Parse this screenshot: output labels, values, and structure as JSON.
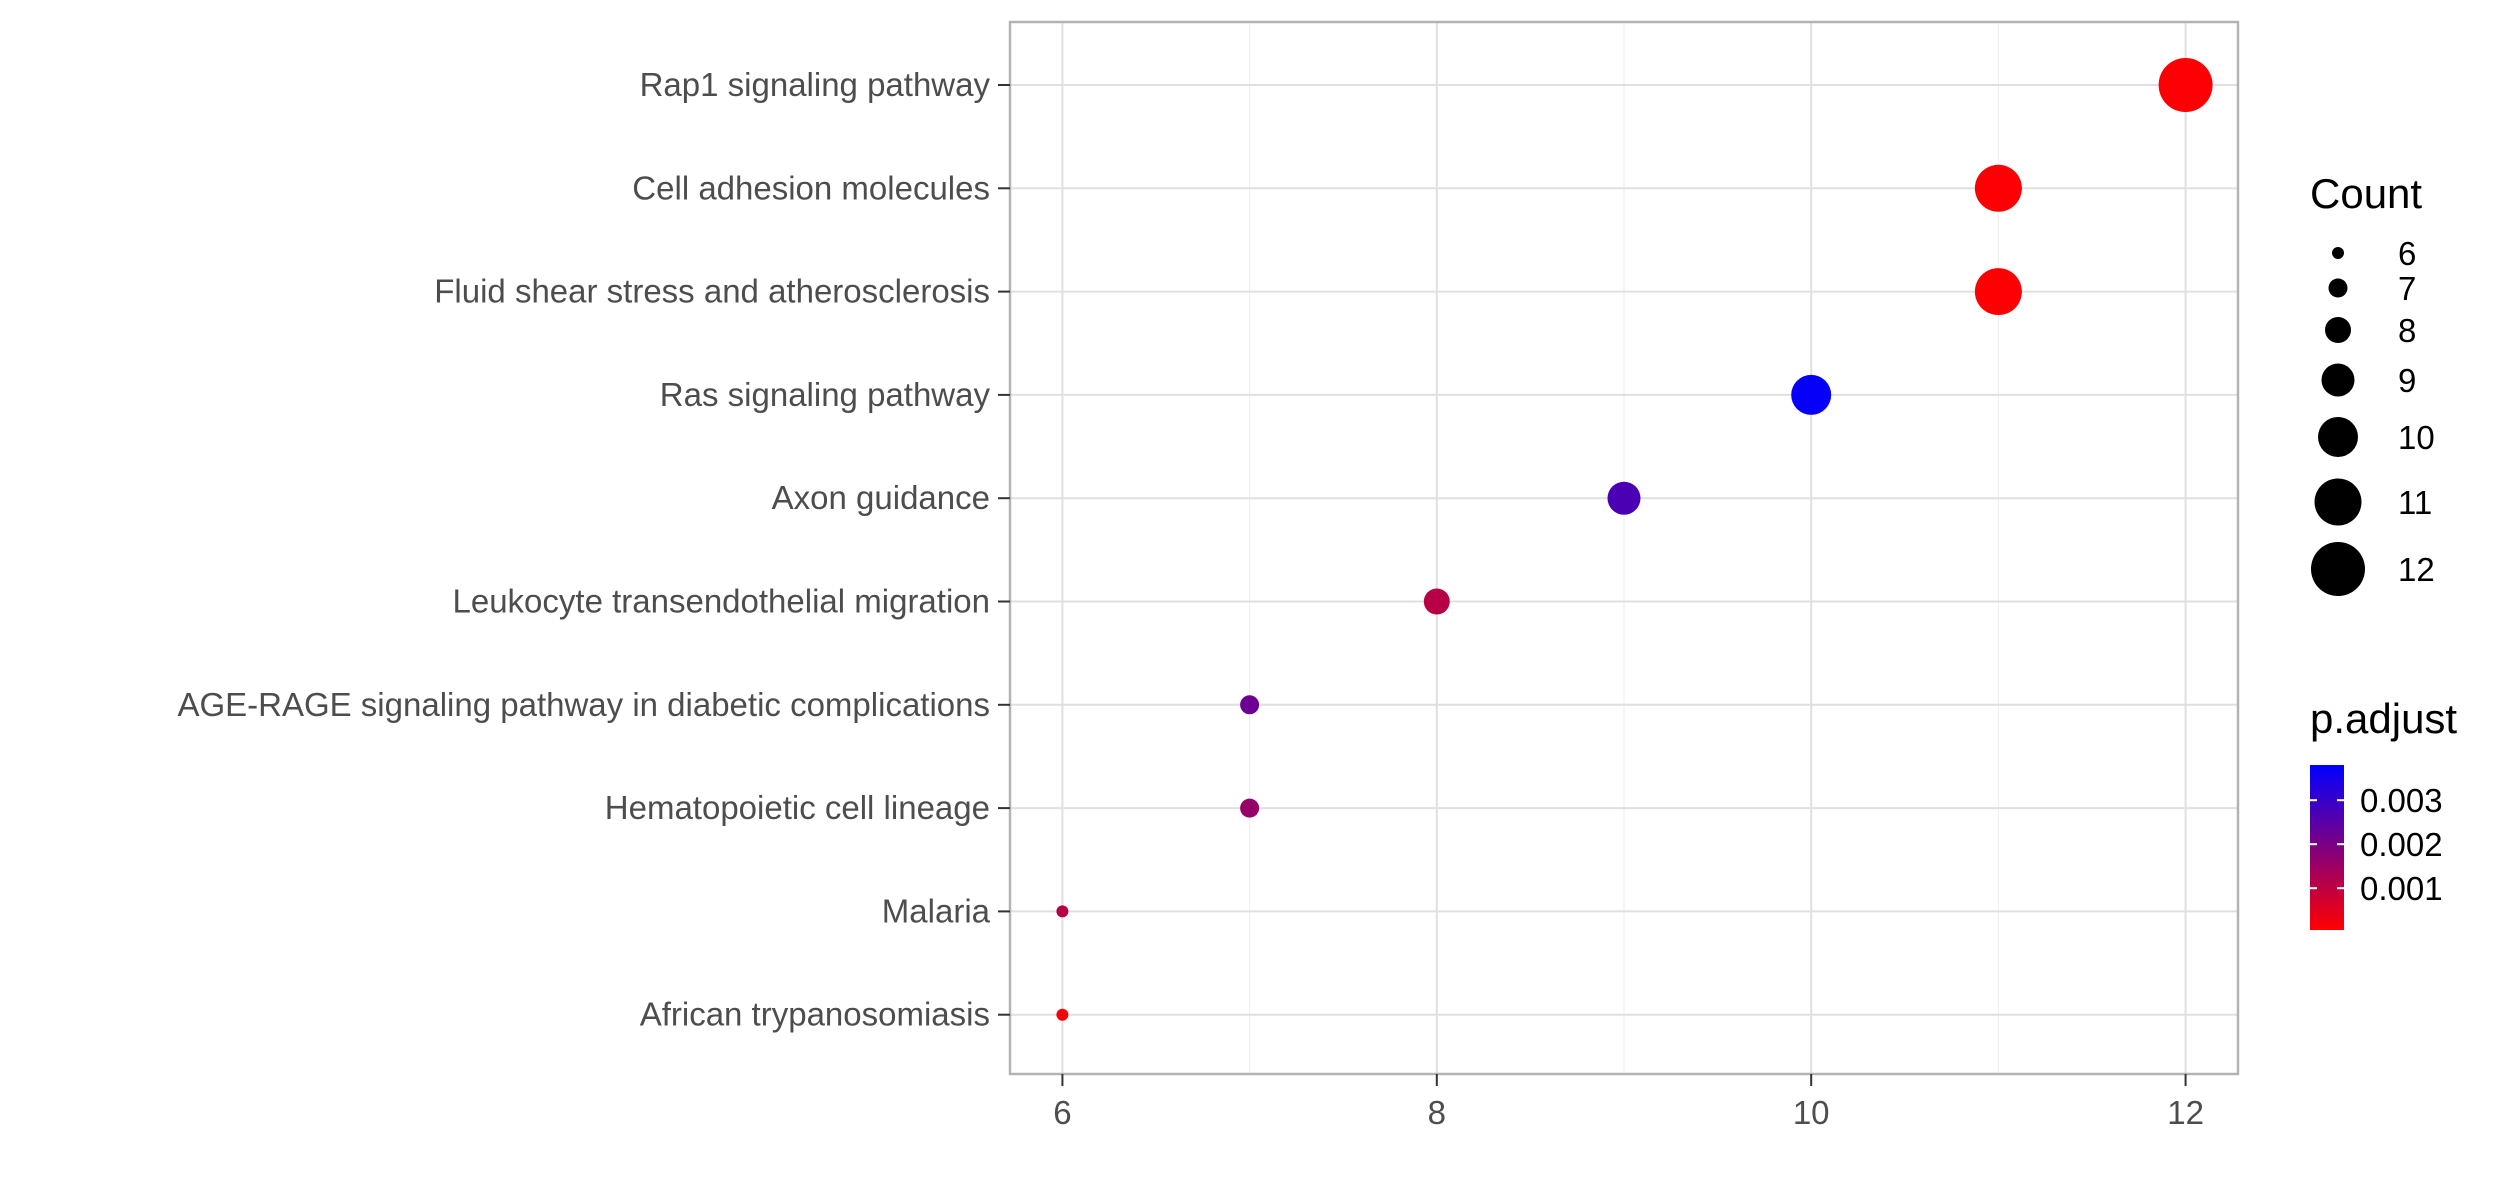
{
  "chart_data": {
    "type": "scatter",
    "title": "",
    "xlabel": "",
    "ylabel": "",
    "xlim": [
      5.72,
      12.28
    ],
    "x_ticks": [
      6,
      8,
      10,
      12
    ],
    "grid": true,
    "categories": [
      "Rap1 signaling pathway",
      "Cell adhesion molecules",
      "Fluid shear stress and atherosclerosis",
      "Ras signaling pathway",
      "Axon guidance",
      "Leukocyte transendothelial migration",
      "AGE-RAGE signaling pathway in diabetic complications",
      "Hematopoietic cell lineage",
      "Malaria",
      "African trypanosomiasis"
    ],
    "points": [
      {
        "category": "Rap1 signaling pathway",
        "x": 12,
        "count": 12,
        "p_adjust": 0.0001
      },
      {
        "category": "Cell adhesion molecules",
        "x": 11,
        "count": 11,
        "p_adjust": 0.0001
      },
      {
        "category": "Fluid shear stress and atherosclerosis",
        "x": 11,
        "count": 11,
        "p_adjust": 0.0001
      },
      {
        "category": "Ras signaling pathway",
        "x": 10,
        "count": 10,
        "p_adjust": 0.0037
      },
      {
        "category": "Axon guidance",
        "x": 9,
        "count": 9,
        "p_adjust": 0.0027
      },
      {
        "category": "Leukocyte transendothelial migration",
        "x": 8,
        "count": 8,
        "p_adjust": 0.0011
      },
      {
        "category": "AGE-RAGE signaling pathway in diabetic complications",
        "x": 7,
        "count": 7,
        "p_adjust": 0.0022
      },
      {
        "category": "Hematopoietic cell lineage",
        "x": 7,
        "count": 7,
        "p_adjust": 0.0016
      },
      {
        "category": "Malaria",
        "x": 6,
        "count": 6,
        "p_adjust": 0.0011
      },
      {
        "category": "African trypanosomiasis",
        "x": 6,
        "count": 6,
        "p_adjust": 0.0002
      }
    ],
    "legend_size": {
      "title": "Count",
      "values": [
        6,
        7,
        8,
        9,
        10,
        11,
        12
      ],
      "labels": [
        "6",
        "7",
        "8",
        "9",
        "10",
        "11",
        "12"
      ]
    },
    "legend_color": {
      "title": "p.adjust",
      "range": [
        5e-05,
        0.0038
      ],
      "ticks": [
        0.001,
        0.002,
        0.003
      ],
      "labels": [
        "0.001",
        "0.002",
        "0.003"
      ],
      "low_color": "#ff0000",
      "high_color": "#0000ff"
    },
    "legend_placement": "right"
  }
}
